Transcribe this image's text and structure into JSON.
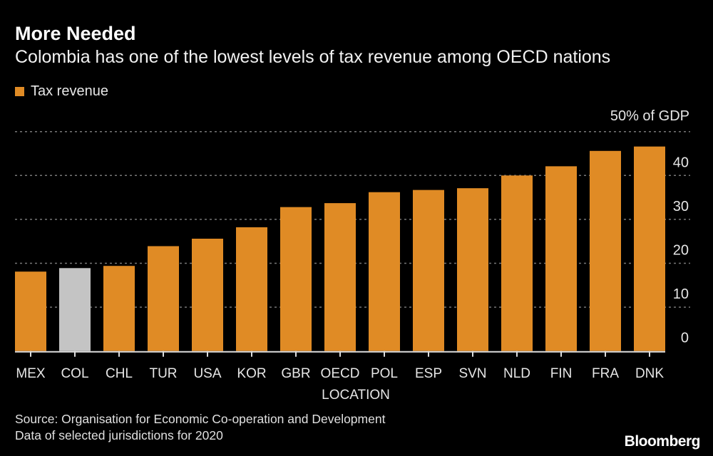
{
  "title": "More Needed",
  "subtitle": "Colombia has one of the lowest levels of tax revenue among OECD nations",
  "source": [
    "Source: Organisation for Economic Co-operation and Development",
    "Data of selected jurisdictions for 2020"
  ],
  "logo": "Bloomberg",
  "chart_data": {
    "type": "bar",
    "categories": [
      "MEX",
      "COL",
      "CHL",
      "TUR",
      "USA",
      "KOR",
      "GBR",
      "OECD",
      "POL",
      "ESP",
      "SVN",
      "NLD",
      "FIN",
      "FRA",
      "DNK"
    ],
    "series": [
      {
        "name": "Tax revenue",
        "values": [
          18.1,
          18.9,
          19.4,
          23.9,
          25.6,
          28.2,
          32.8,
          33.7,
          36.2,
          36.7,
          37.1,
          40.0,
          42.1,
          45.6,
          46.6
        ]
      }
    ],
    "highlight": "COL",
    "xlabel": "LOCATION",
    "ylabel": "",
    "unit_label": "50% of GDP",
    "yticks": [
      0,
      10,
      20,
      30,
      40,
      50
    ],
    "ytick_labels": [
      "0",
      "10",
      "20",
      "30",
      "40"
    ],
    "ylim": [
      0,
      50
    ],
    "grid": true,
    "legend_position": "top-left",
    "y_axis_side": "right",
    "colors": {
      "bar": "#e08b25",
      "highlight": "#c4c4c4",
      "background": "#000000",
      "grid": "#777777"
    }
  }
}
